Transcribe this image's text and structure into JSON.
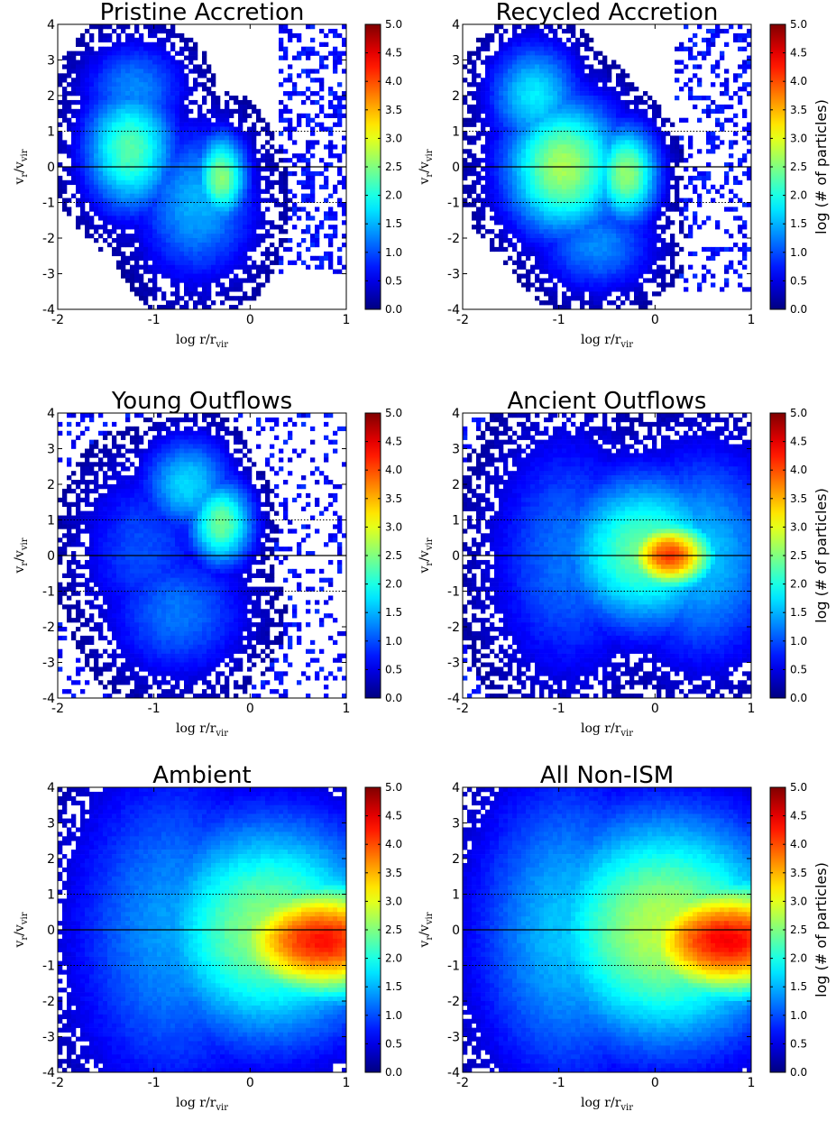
{
  "figure": {
    "layout": "3 rows x 2 columns",
    "colormap": "jet",
    "colorbar": {
      "ticks": [
        "0.0",
        "0.5",
        "1.0",
        "1.5",
        "2.0",
        "2.5",
        "3.0",
        "3.5",
        "4.0",
        "4.5",
        "5.0"
      ],
      "range": [
        0,
        5
      ],
      "label": "log (# of particles)"
    },
    "axes": {
      "x_label_main": "log r/r",
      "x_label_sub": "vir",
      "y_label_main": "v",
      "y_label_sub_r": "r",
      "y_label_slash": "/v",
      "y_label_sub_vir": "vir",
      "x_ticks": [
        "-2",
        "-1",
        "0",
        "1"
      ],
      "y_ticks": [
        "4",
        "3",
        "2",
        "1",
        "0",
        "-1",
        "-2",
        "-3",
        "-4"
      ],
      "xlim": [
        -2,
        1
      ],
      "ylim": [
        -4,
        4
      ],
      "hlines": [
        {
          "y": 0,
          "style": "solid"
        },
        {
          "y": 1,
          "style": "dotted"
        },
        {
          "y": -1,
          "style": "dotted"
        }
      ]
    }
  },
  "chart_data": [
    {
      "type": "heatmap",
      "title": "Pristine Accretion",
      "colorbar_label_shown": false,
      "blobs": [
        {
          "x": -1.25,
          "y": 0.5,
          "sx": 0.35,
          "sy": 1.3,
          "amp": 2.3
        },
        {
          "x": -0.3,
          "y": -0.3,
          "sx": 0.2,
          "sy": 0.9,
          "amp": 2.55
        },
        {
          "x": -1.2,
          "y": 2.2,
          "sx": 0.4,
          "sy": 1.0,
          "amp": 1.3
        },
        {
          "x": -0.55,
          "y": -1.0,
          "sx": 0.45,
          "sy": 1.6,
          "amp": 1.5
        }
      ],
      "sparse": {
        "xmin": 0.3,
        "xmax": 1.0,
        "ymin": -3.0,
        "ymax": 4.0,
        "density": 0.35
      }
    },
    {
      "type": "heatmap",
      "title": "Recycled Accretion",
      "colorbar_label_shown": true,
      "blobs": [
        {
          "x": -0.95,
          "y": 0.0,
          "sx": 0.45,
          "sy": 1.4,
          "amp": 2.7
        },
        {
          "x": -1.25,
          "y": 2.0,
          "sx": 0.35,
          "sy": 1.1,
          "amp": 1.8
        },
        {
          "x": -0.3,
          "y": -0.2,
          "sx": 0.25,
          "sy": 1.0,
          "amp": 2.6
        },
        {
          "x": -0.6,
          "y": -2.2,
          "sx": 0.45,
          "sy": 1.0,
          "amp": 1.3
        }
      ],
      "sparse": {
        "xmin": 0.2,
        "xmax": 1.0,
        "ymin": -3.5,
        "ymax": 4.0,
        "density": 0.3
      }
    },
    {
      "type": "heatmap",
      "title": "Young Outflows",
      "colorbar_label_shown": false,
      "blobs": [
        {
          "x": -0.3,
          "y": 0.9,
          "sx": 0.25,
          "sy": 0.9,
          "amp": 2.4
        },
        {
          "x": -0.65,
          "y": 2.0,
          "sx": 0.35,
          "sy": 1.0,
          "amp": 1.7
        },
        {
          "x": -0.75,
          "y": -1.6,
          "sx": 0.55,
          "sy": 1.4,
          "amp": 1.2
        },
        {
          "x": -1.1,
          "y": 0.2,
          "sx": 0.5,
          "sy": 1.8,
          "amp": 1.0
        }
      ],
      "sparse": {
        "xmin": -2.0,
        "xmax": 1.0,
        "ymin": -4.0,
        "ymax": 4.0,
        "density": 0.2
      }
    },
    {
      "type": "heatmap",
      "title": "Ancient Outflows",
      "colorbar_label_shown": true,
      "blobs": [
        {
          "x": 0.15,
          "y": 0.0,
          "sx": 0.35,
          "sy": 0.7,
          "amp": 4.1
        },
        {
          "x": -0.1,
          "y": 0.1,
          "sx": 0.65,
          "sy": 1.6,
          "amp": 2.4
        },
        {
          "x": -0.9,
          "y": 0.0,
          "sx": 0.6,
          "sy": 2.6,
          "amp": 1.2
        },
        {
          "x": 0.5,
          "y": 0.0,
          "sx": 0.6,
          "sy": 2.2,
          "amp": 1.6
        }
      ],
      "sparse": {
        "xmin": -2.0,
        "xmax": -1.2,
        "ymin": -4.0,
        "ymax": 4.0,
        "density": 0.25
      }
    },
    {
      "type": "heatmap",
      "title": "Ambient",
      "colorbar_label_shown": false,
      "blobs": [
        {
          "x": 0.75,
          "y": -0.3,
          "sx": 0.75,
          "sy": 1.2,
          "amp": 4.3
        },
        {
          "x": 0.2,
          "y": 0.0,
          "sx": 0.9,
          "sy": 2.3,
          "amp": 2.6
        },
        {
          "x": -0.8,
          "y": 0.0,
          "sx": 0.8,
          "sy": 3.5,
          "amp": 1.4
        },
        {
          "x": 0.95,
          "y": -0.4,
          "sx": 0.12,
          "sy": 0.25,
          "amp": 0.9
        }
      ],
      "sparse": {
        "xmin": -2.0,
        "xmax": -1.5,
        "ymin": -4.0,
        "ymax": 4.0,
        "density": 0.2
      }
    },
    {
      "type": "heatmap",
      "title": "All Non-ISM",
      "colorbar_label_shown": true,
      "blobs": [
        {
          "x": 0.75,
          "y": -0.3,
          "sx": 0.75,
          "sy": 1.2,
          "amp": 4.4
        },
        {
          "x": 0.1,
          "y": 0.0,
          "sx": 0.95,
          "sy": 2.4,
          "amp": 2.8
        },
        {
          "x": -0.9,
          "y": 0.0,
          "sx": 0.75,
          "sy": 3.3,
          "amp": 1.6
        },
        {
          "x": 0.95,
          "y": -0.4,
          "sx": 0.12,
          "sy": 0.25,
          "amp": 0.9
        }
      ],
      "sparse": {
        "xmin": -2.0,
        "xmax": -1.5,
        "ymin": -4.0,
        "ymax": 4.0,
        "density": 0.2
      }
    }
  ]
}
